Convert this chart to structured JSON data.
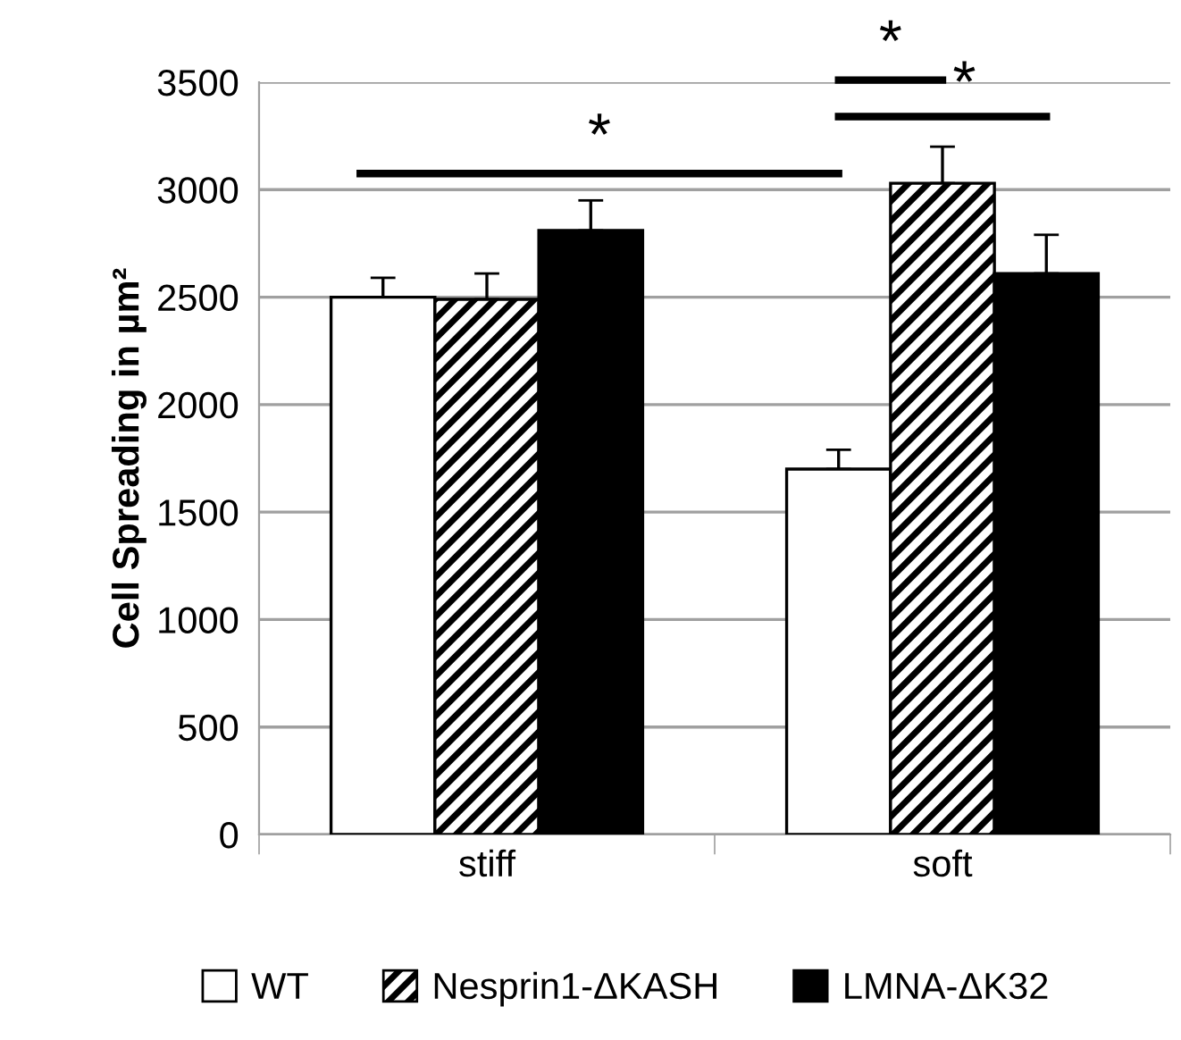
{
  "chart_data": {
    "type": "bar",
    "ylabel": "Cell Spreading in µm²",
    "categories": [
      "stiff",
      "soft"
    ],
    "series": [
      {
        "name": "WT",
        "color": "#ffffff",
        "values": [
          2500,
          1700
        ],
        "errors": [
          [
            2500,
            2590
          ],
          [
            1700,
            1790
          ]
        ]
      },
      {
        "name": "Nesprin1-ΔKASH",
        "color": "#000000",
        "values": [
          2490,
          3030
        ],
        "errors": [
          [
            2490,
            2610
          ],
          [
            3030,
            3200
          ]
        ]
      },
      {
        "name": "LMNA-ΔK32",
        "color": "#000000",
        "values": [
          2810,
          2610
        ],
        "errors": [
          [
            2810,
            2950
          ],
          [
            2610,
            2790
          ]
        ]
      }
    ],
    "ylim": [
      0,
      3500
    ],
    "yticks": [
      0,
      500,
      1000,
      1500,
      2000,
      2500,
      3000,
      3500
    ],
    "grid": "y",
    "legend": "bottom",
    "annotations": [
      "*",
      "*",
      "*"
    ]
  }
}
